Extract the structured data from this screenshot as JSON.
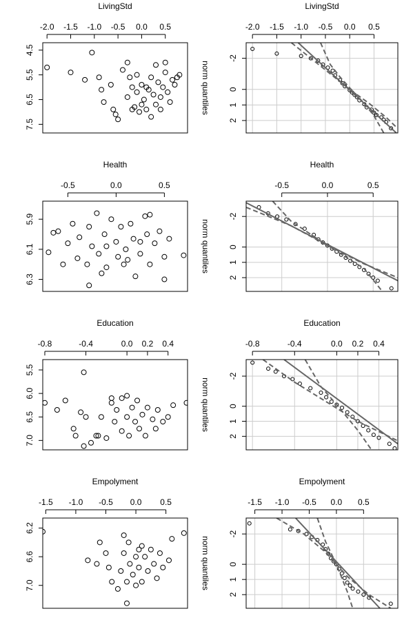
{
  "chart_data": [
    {
      "type": "scatter",
      "title": "LivingStd",
      "x": [
        -2.0,
        -1.5,
        -1.05,
        -1.2,
        -0.9,
        -0.85,
        -0.8,
        -0.65,
        -0.55,
        -0.5,
        -0.6,
        -0.4,
        -0.3,
        -0.25,
        -0.2,
        -0.3,
        -0.15,
        -0.1,
        0.0,
        0.05,
        0.1,
        0.15,
        0.2,
        0.25,
        0.3,
        0.35,
        0.4,
        0.45,
        0.5,
        0.55,
        0.6,
        0.65,
        0.7,
        0.75,
        0.8,
        -0.05,
        0.2,
        0.1,
        -0.2,
        0.3,
        0.0,
        -0.1,
        0.4,
        0.5
      ],
      "y": [
        5.2,
        5.4,
        4.6,
        5.7,
        5.6,
        6.1,
        6.6,
        5.9,
        7.1,
        7.3,
        6.9,
        5.3,
        5.0,
        5.6,
        6.0,
        6.4,
        6.8,
        6.2,
        5.9,
        6.5,
        6.9,
        6.1,
        5.6,
        6.3,
        6.7,
        5.8,
        6.4,
        6.0,
        5.4,
        6.2,
        6.6,
        5.7,
        5.9,
        5.6,
        5.5,
        7.0,
        7.2,
        6.0,
        6.9,
        5.1,
        6.7,
        5.5,
        6.9,
        5.0
      ],
      "xlim": [
        -2.09,
        0.97
      ],
      "ylim": [
        4.2,
        7.85
      ],
      "y_inverted": true,
      "xticks": [
        {
          "value": -2,
          "label": "-2.0"
        },
        -1.5,
        {
          "value": -1,
          "label": "-1.0"
        },
        -0.5,
        {
          "value": 0,
          "label": "0.0"
        },
        0.5
      ],
      "yticks": [
        4.5,
        5.5,
        6.5,
        7.5
      ],
      "grid": false,
      "color": "#000000"
    },
    {
      "type": "qq",
      "title": "LivingStd",
      "ylabel": "norm quantiles",
      "x": [
        -2.0,
        -1.5,
        -1.0,
        -0.8,
        -0.65,
        -0.55,
        -0.45,
        -0.35,
        -0.3,
        -0.2,
        -0.15,
        -0.1,
        0.0,
        0.05,
        0.1,
        0.15,
        0.2,
        0.3,
        0.35,
        0.45,
        0.5,
        0.55,
        0.65,
        0.7,
        0.75,
        0.85
      ],
      "y": [
        -2.6,
        -2.3,
        -2.15,
        -2.0,
        -1.85,
        -1.6,
        -1.4,
        -1.2,
        -0.9,
        -0.6,
        -0.4,
        -0.2,
        0.05,
        0.2,
        0.35,
        0.5,
        0.7,
        0.95,
        1.15,
        1.3,
        1.5,
        1.65,
        1.8,
        1.95,
        2.1,
        2.5
      ],
      "lines": [
        {
          "x": [
            -1.06,
            0.96
          ],
          "y": [
            -3.0,
            2.8
          ],
          "color": "#666666",
          "dashed": false
        },
        {
          "x": [
            -0.6,
            -0.4,
            -0.2,
            0,
            0.3,
            0.5,
            0.7
          ],
          "y": [
            -3.0,
            -1.6,
            -0.8,
            -0.1,
            0.9,
            1.7,
            2.8
          ],
          "color": "#666666",
          "dashed": true
        },
        {
          "x": [
            -1.2,
            -0.8,
            -0.4,
            0,
            0.4,
            0.75,
            0.95
          ],
          "y": [
            -3.0,
            -2.0,
            -1.0,
            0.0,
            0.9,
            1.8,
            2.4
          ],
          "color": "#666666",
          "dashed": true
        }
      ],
      "xlim": [
        -2.13,
        0.99
      ],
      "ylim": [
        -3.0,
        2.8
      ],
      "y_inverted": true,
      "xticks": [
        {
          "value": -2,
          "label": "-2.0"
        },
        -1.5,
        {
          "value": -1,
          "label": "-1.0"
        },
        -0.5,
        {
          "value": 0,
          "label": "0.0"
        },
        0.5
      ],
      "yticks": [
        -2,
        0,
        1,
        2
      ],
      "grid": true,
      "color": "#000000"
    },
    {
      "type": "scatter",
      "title": "Health",
      "x": [
        -0.7,
        -0.65,
        -0.6,
        -0.55,
        -0.5,
        -0.45,
        -0.4,
        -0.38,
        -0.3,
        -0.28,
        -0.25,
        -0.2,
        -0.18,
        -0.15,
        -0.12,
        -0.1,
        -0.05,
        0.0,
        0.02,
        0.05,
        0.08,
        0.1,
        0.15,
        0.18,
        0.2,
        0.25,
        0.3,
        0.32,
        0.35,
        0.4,
        0.45,
        0.5,
        0.55,
        0.5,
        0.7,
        -0.28,
        0.35,
        -0.1,
        0.12,
        0.25
      ],
      "y": [
        6.12,
        5.99,
        5.98,
        6.2,
        6.06,
        5.93,
        6.16,
        6.02,
        6.2,
        5.95,
        6.08,
        5.86,
        6.13,
        6.26,
        6.0,
        6.22,
        5.9,
        6.05,
        6.15,
        5.95,
        6.2,
        6.1,
        5.93,
        6.03,
        6.28,
        6.13,
        5.88,
        6.0,
        6.2,
        6.06,
        5.98,
        6.15,
        6.03,
        6.3,
        6.14,
        6.34,
        5.87,
        6.08,
        6.17,
        6.05
      ],
      "xlim": [
        -0.76,
        0.74
      ],
      "ylim": [
        5.78,
        6.38
      ],
      "y_inverted": true,
      "xticks": [
        -0.5,
        {
          "value": 0,
          "label": "0.0"
        },
        0.5
      ],
      "yticks": [
        5.9,
        6.1,
        6.3
      ],
      "grid": false,
      "color": "#000000"
    },
    {
      "type": "qq",
      "title": "Health",
      "ylabel": "norm quantiles",
      "x": [
        -0.75,
        -0.65,
        -0.55,
        -0.45,
        -0.35,
        -0.25,
        -0.15,
        -0.1,
        -0.05,
        0.0,
        0.05,
        0.1,
        0.15,
        0.2,
        0.25,
        0.3,
        0.35,
        0.4,
        0.45,
        0.5,
        0.55,
        0.7
      ],
      "y": [
        -2.6,
        -2.2,
        -2.0,
        -1.8,
        -1.5,
        -1.2,
        -0.8,
        -0.5,
        -0.3,
        -0.1,
        0.1,
        0.3,
        0.5,
        0.7,
        0.9,
        1.1,
        1.3,
        1.5,
        1.75,
        2.0,
        2.2,
        2.7
      ],
      "lines": [
        {
          "x": [
            -0.89,
            0.77
          ],
          "y": [
            -2.9,
            2.2
          ],
          "color": "#666666",
          "dashed": false
        },
        {
          "x": [
            -0.89,
            -0.4,
            0,
            0.4,
            0.77
          ],
          "y": [
            -2.6,
            -1.4,
            -0.1,
            1.1,
            2.0
          ],
          "color": "#666666",
          "dashed": true
        },
        {
          "x": [
            -0.6,
            -0.4,
            0,
            0.4,
            0.6
          ],
          "y": [
            -3.0,
            -1.7,
            -0.1,
            1.4,
            2.9
          ],
          "color": "#666666",
          "dashed": true
        }
      ],
      "xlim": [
        -0.89,
        0.77
      ],
      "ylim": [
        -3.0,
        2.9
      ],
      "y_inverted": true,
      "xticks": [
        -0.5,
        {
          "value": 0,
          "label": "0.0"
        },
        0.5
      ],
      "yticks": [
        -2,
        0,
        1,
        2
      ],
      "grid": true,
      "color": "#000000"
    },
    {
      "type": "scatter",
      "title": "Education",
      "x": [
        -0.8,
        -0.68,
        -0.6,
        -0.52,
        -0.5,
        -0.42,
        -0.45,
        -0.4,
        -0.35,
        -0.3,
        -0.28,
        -0.25,
        -0.2,
        -0.15,
        -0.12,
        -0.1,
        -0.05,
        -0.05,
        0.0,
        0.02,
        0.05,
        0.08,
        0.1,
        0.12,
        0.15,
        0.18,
        0.2,
        0.25,
        0.28,
        0.3,
        0.35,
        0.4,
        0.45,
        0.58,
        -0.42,
        0.0,
        -0.15
      ],
      "y": [
        6.2,
        6.35,
        6.15,
        6.75,
        6.9,
        5.55,
        6.4,
        6.5,
        7.05,
        6.9,
        6.9,
        6.5,
        6.95,
        6.2,
        6.6,
        6.35,
        6.8,
        6.1,
        6.5,
        6.9,
        6.3,
        6.6,
        6.15,
        6.75,
        6.45,
        6.9,
        6.3,
        6.55,
        6.75,
        6.35,
        6.6,
        6.5,
        6.25,
        6.2,
        7.12,
        6.05,
        6.1
      ],
      "xlim": [
        -0.82,
        0.59
      ],
      "ylim": [
        5.28,
        7.2
      ],
      "y_inverted": true,
      "xticks": [
        -0.8,
        -0.4,
        {
          "value": 0,
          "label": "0.0"
        },
        0.2,
        0.4
      ],
      "yticks": [
        5.5,
        {
          "value": 6,
          "label": "6.0"
        },
        6.5,
        {
          "value": 7,
          "label": "7.0"
        }
      ],
      "grid": false,
      "color": "#000000"
    },
    {
      "type": "qq",
      "title": "Education",
      "ylabel": "norm quantiles",
      "x": [
        -0.8,
        -0.65,
        -0.58,
        -0.5,
        -0.42,
        -0.35,
        -0.25,
        -0.15,
        -0.1,
        -0.05,
        0.0,
        0.05,
        0.1,
        0.15,
        0.2,
        0.25,
        0.3,
        0.35,
        0.4,
        0.5,
        0.55
      ],
      "y": [
        -2.9,
        -2.5,
        -2.3,
        -2.0,
        -1.8,
        -1.5,
        -1.2,
        -0.9,
        -0.6,
        -0.3,
        -0.1,
        0.1,
        0.4,
        0.7,
        1.0,
        1.3,
        1.6,
        1.9,
        2.1,
        2.5,
        2.8
      ],
      "lines": [
        {
          "x": [
            -0.5,
            0.58
          ],
          "y": [
            -3.1,
            2.5
          ],
          "color": "#666666",
          "dashed": false
        },
        {
          "x": [
            -0.7,
            -0.4,
            -0.1,
            0.2,
            0.58
          ],
          "y": [
            -3.1,
            -1.6,
            -0.3,
            1.0,
            2.3
          ],
          "color": "#666666",
          "dashed": true
        },
        {
          "x": [
            -0.3,
            -0.15,
            0,
            0.2,
            0.33
          ],
          "y": [
            -3.1,
            -1.3,
            -0.1,
            1.6,
            2.9
          ],
          "color": "#666666",
          "dashed": true
        }
      ],
      "xlim": [
        -0.86,
        0.58
      ],
      "ylim": [
        -3.1,
        2.9
      ],
      "y_inverted": true,
      "xticks": [
        -0.8,
        -0.4,
        {
          "value": 0,
          "label": "0.0"
        },
        0.2,
        0.4
      ],
      "yticks": [
        -2,
        0,
        1,
        2
      ],
      "grid": true,
      "color": "#000000"
    },
    {
      "type": "scatter",
      "title": "Empolyment",
      "x": [
        -1.55,
        -0.8,
        -0.65,
        -0.5,
        -0.45,
        -0.4,
        -0.3,
        -0.25,
        -0.2,
        -0.15,
        -0.12,
        -0.1,
        -0.05,
        0.0,
        0.05,
        0.1,
        0.1,
        0.15,
        0.2,
        0.25,
        0.3,
        0.35,
        0.4,
        0.45,
        0.55,
        0.6,
        0.8,
        -0.15,
        -0.2,
        -0.6,
        0.0,
        0.05
      ],
      "y": [
        6.25,
        6.65,
        6.7,
        6.55,
        6.75,
        6.95,
        7.05,
        6.8,
        6.55,
        6.95,
        6.4,
        6.7,
        6.85,
        6.6,
        6.75,
        6.45,
        6.95,
        6.6,
        6.8,
        6.5,
        6.7,
        6.9,
        6.55,
        6.75,
        6.65,
        6.35,
        6.27,
        7.25,
        6.3,
        6.4,
        7.0,
        6.5
      ],
      "xlim": [
        -1.55,
        0.86
      ],
      "ylim": [
        6.06,
        7.32
      ],
      "y_inverted": true,
      "xticks": [
        -1.5,
        {
          "value": -1,
          "label": "-1.0"
        },
        -0.5,
        {
          "value": 0,
          "label": "0.0"
        },
        0.5
      ],
      "yticks": [
        6.2,
        6.6,
        {
          "value": 7,
          "label": "7.0"
        }
      ],
      "grid": false,
      "color": "#000000"
    },
    {
      "type": "qq",
      "title": "Empolyment",
      "ylabel": "norm quantiles",
      "x": [
        -1.6,
        -0.85,
        -0.7,
        -0.55,
        -0.45,
        -0.35,
        -0.25,
        -0.2,
        -0.15,
        -0.1,
        -0.05,
        0.0,
        0.05,
        0.1,
        0.15,
        0.2,
        0.25,
        0.3,
        0.4,
        0.5,
        0.6,
        1.0
      ],
      "y": [
        -2.7,
        -2.3,
        -2.2,
        -2.0,
        -1.8,
        -1.6,
        -1.3,
        -1.0,
        -0.7,
        -0.4,
        -0.2,
        0.0,
        0.3,
        0.6,
        0.9,
        1.2,
        1.4,
        1.6,
        1.8,
        2.0,
        2.2,
        2.6
      ],
      "lines": [
        {
          "x": [
            -0.75,
            0.8
          ],
          "y": [
            -3.05,
            2.9
          ],
          "color": "#666666",
          "dashed": false
        },
        {
          "x": [
            -1.1,
            -0.6,
            -0.2,
            0.2,
            0.6,
            1.0
          ],
          "y": [
            -3.05,
            -2.0,
            -0.8,
            0.8,
            2.0,
            2.9
          ],
          "color": "#666666",
          "dashed": true
        },
        {
          "x": [
            -0.35,
            -0.2,
            0,
            0.2,
            0.3
          ],
          "y": [
            -3.05,
            -1.5,
            0,
            1.8,
            2.9
          ],
          "color": "#666666",
          "dashed": true
        }
      ],
      "xlim": [
        -1.66,
        1.13
      ],
      "ylim": [
        -3.05,
        2.9
      ],
      "y_inverted": true,
      "xticks": [
        -1.5,
        {
          "value": -1,
          "label": "-1.0"
        },
        -0.5,
        {
          "value": 0,
          "label": "0.0"
        },
        0.5
      ],
      "yticks": [
        -2,
        0,
        1,
        2
      ],
      "grid": true,
      "color": "#000000"
    }
  ]
}
